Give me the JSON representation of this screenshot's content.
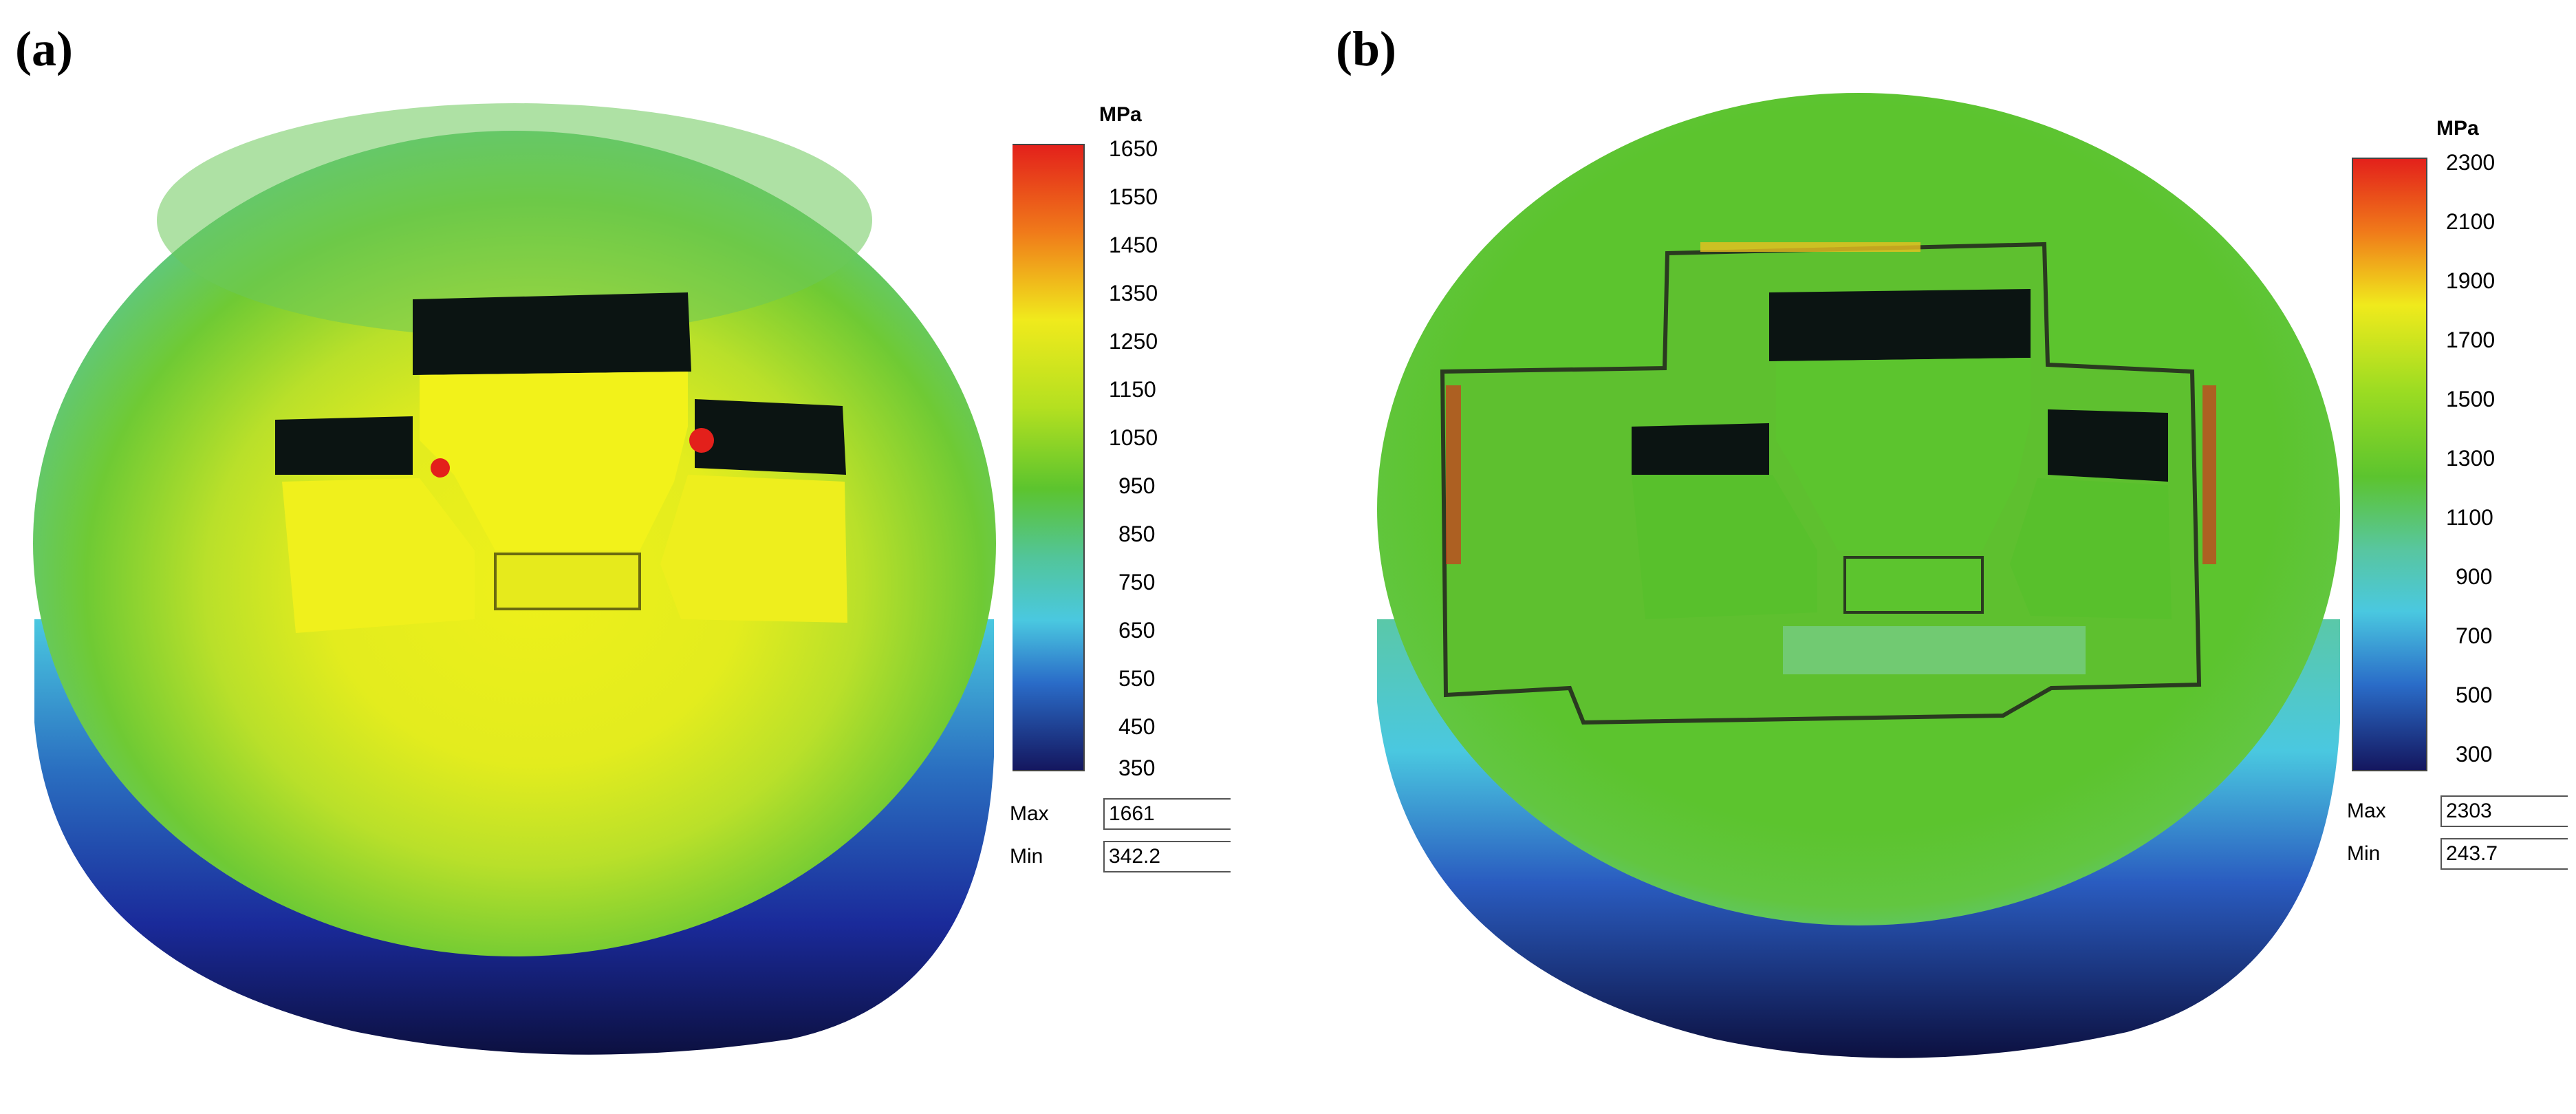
{
  "panels": [
    {
      "label": "(a)",
      "unit": "MPa",
      "ticks": [
        "1650",
        "1550",
        "1450",
        "1350",
        "1250",
        "1150",
        "1050",
        "950",
        "850",
        "750",
        "650",
        "550",
        "450",
        "350"
      ],
      "max_label": "Max",
      "max_value": "1661",
      "min_label": "Min",
      "min_value": "342.2"
    },
    {
      "label": "(b)",
      "unit": "MPa",
      "ticks": [
        "2300",
        "2100",
        "1900",
        "1700",
        "1500",
        "1300",
        "1100",
        "900",
        "700",
        "500",
        "300"
      ],
      "max_label": "Max",
      "max_value": "2303",
      "min_label": "Min",
      "min_value": "243.7"
    }
  ],
  "colors": {
    "scale_red": "#e3201b",
    "scale_yellow": "#e8ef1c",
    "scale_green": "#5cc42e",
    "scale_cyan": "#4ac8e0",
    "scale_blue": "#1c2fa8",
    "scale_navy": "#14165e"
  }
}
